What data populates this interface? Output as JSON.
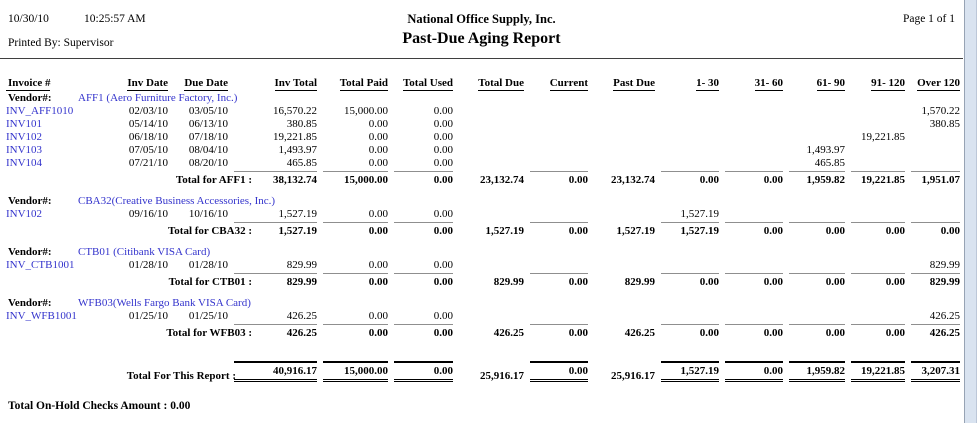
{
  "header": {
    "date": "10/30/10",
    "time": "10:25:57 AM",
    "printed_by": "Printed By: Supervisor",
    "company": "National Office Supply, Inc.",
    "title": "Past-Due Aging Report",
    "page": "Page 1 of 1"
  },
  "table": {
    "columns": [
      "Invoice #",
      "Inv Date",
      "Due Date",
      "Inv Total",
      "Total Paid",
      "Total Used",
      "Total Due",
      "Current",
      "Past Due",
      "1- 30",
      "31- 60",
      "61- 90",
      "91- 120",
      "Over 120"
    ],
    "vendor_label": "Vendor#:",
    "groups": [
      {
        "vendor": "AFF1 (Aero Furniture Factory, Inc.)",
        "rows": [
          [
            "INV_AFF1010",
            "02/03/10",
            "03/05/10",
            "16,570.22",
            "15,000.00",
            "0.00",
            "",
            "",
            "",
            "",
            "",
            "",
            "",
            "1,570.22"
          ],
          [
            "INV101",
            "05/14/10",
            "06/13/10",
            "380.85",
            "0.00",
            "0.00",
            "",
            "",
            "",
            "",
            "",
            "",
            "",
            "380.85"
          ],
          [
            "INV102",
            "06/18/10",
            "07/18/10",
            "19,221.85",
            "0.00",
            "0.00",
            "",
            "",
            "",
            "",
            "",
            "",
            "19,221.85",
            ""
          ],
          [
            "INV103",
            "07/05/10",
            "08/04/10",
            "1,493.97",
            "0.00",
            "0.00",
            "",
            "",
            "",
            "",
            "",
            "1,493.97",
            "",
            ""
          ],
          [
            "INV104",
            "07/21/10",
            "08/20/10",
            "465.85",
            "0.00",
            "0.00",
            "",
            "",
            "",
            "",
            "",
            "465.85",
            "",
            ""
          ]
        ],
        "total_label": "Total for AFF1 :",
        "total": [
          "38,132.74",
          "15,000.00",
          "0.00",
          "23,132.74",
          "0.00",
          "23,132.74",
          "0.00",
          "0.00",
          "1,959.82",
          "19,221.85",
          "1,951.07"
        ]
      },
      {
        "vendor": "CBA32(Creative Business Accessories, Inc.)",
        "rows": [
          [
            "INV102",
            "09/16/10",
            "10/16/10",
            "1,527.19",
            "0.00",
            "0.00",
            "",
            "",
            "",
            "1,527.19",
            "",
            "",
            "",
            ""
          ]
        ],
        "total_label": "Total for CBA32 :",
        "total": [
          "1,527.19",
          "0.00",
          "0.00",
          "1,527.19",
          "0.00",
          "1,527.19",
          "1,527.19",
          "0.00",
          "0.00",
          "0.00",
          "0.00"
        ]
      },
      {
        "vendor": "CTB01 (Citibank VISA Card)",
        "rows": [
          [
            "INV_CTB1001",
            "01/28/10",
            "01/28/10",
            "829.99",
            "0.00",
            "0.00",
            "",
            "",
            "",
            "",
            "",
            "",
            "",
            "829.99"
          ]
        ],
        "total_label": "Total for CTB01 :",
        "total": [
          "829.99",
          "0.00",
          "0.00",
          "829.99",
          "0.00",
          "829.99",
          "0.00",
          "0.00",
          "0.00",
          "0.00",
          "829.99"
        ]
      },
      {
        "vendor": "WFB03(Wells Fargo Bank VISA Card)",
        "rows": [
          [
            "INV_WFB1001",
            "01/25/10",
            "01/25/10",
            "426.25",
            "0.00",
            "0.00",
            "",
            "",
            "",
            "",
            "",
            "",
            "",
            "426.25"
          ]
        ],
        "total_label": "Total for WFB03 :",
        "total": [
          "426.25",
          "0.00",
          "0.00",
          "426.25",
          "0.00",
          "426.25",
          "0.00",
          "0.00",
          "0.00",
          "0.00",
          "426.25"
        ]
      }
    ],
    "report_total_label": "Total For This Report :",
    "report_total": [
      "40,916.17",
      "15,000.00",
      "0.00",
      "25,916.17",
      "0.00",
      "25,916.17",
      "1,527.19",
      "0.00",
      "1,959.82",
      "19,221.85",
      "3,207.31"
    ]
  },
  "footer": {
    "label": "Total On-Hold Checks Amount :",
    "value": "0.00"
  },
  "colors": {
    "link_blue": "#3333cc",
    "rule_gray": "#8f8f8f",
    "strip_blue": "#d9e3f0"
  }
}
